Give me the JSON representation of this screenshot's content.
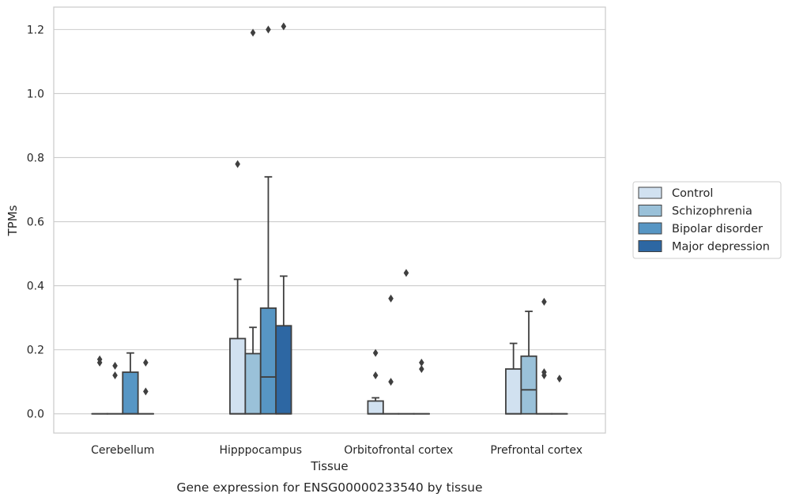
{
  "chart_data": {
    "type": "box",
    "xlabel": "Tissue",
    "ylabel": "TPMs",
    "caption": "Gene expression for ENSG00000233540 by tissue",
    "categories": [
      "Cerebellum",
      "Hipppocampus",
      "Orbitofrontal cortex",
      "Prefrontal cortex"
    ],
    "ylim": [
      -0.06,
      1.27
    ],
    "yticks": [
      0.0,
      0.2,
      0.4,
      0.6,
      0.8,
      1.0,
      1.2
    ],
    "ytick_labels": [
      "0.0",
      "0.2",
      "0.4",
      "0.6",
      "0.8",
      "1.0",
      "1.2"
    ],
    "grid": "horizontal",
    "legend_position": "right",
    "series": [
      {
        "name": "Control",
        "color": "#d1e1f0",
        "boxes": [
          {
            "category": "Cerebellum",
            "whisker_low": 0,
            "q1": 0,
            "median": 0,
            "q3": 0,
            "whisker_high": 0,
            "outliers": [
              0.17,
              0.16
            ]
          },
          {
            "category": "Hipppocampus",
            "whisker_low": 0,
            "q1": 0,
            "median": 0,
            "q3": 0.235,
            "whisker_high": 0.42,
            "outliers": [
              0.78
            ]
          },
          {
            "category": "Orbitofrontal cortex",
            "whisker_low": 0,
            "q1": 0,
            "median": 0,
            "q3": 0.04,
            "whisker_high": 0.05,
            "outliers": [
              0.19,
              0.12
            ]
          },
          {
            "category": "Prefrontal cortex",
            "whisker_low": 0,
            "q1": 0,
            "median": 0,
            "q3": 0.14,
            "whisker_high": 0.22,
            "outliers": []
          }
        ]
      },
      {
        "name": "Schizophrenia",
        "color": "#9ac1d9",
        "boxes": [
          {
            "category": "Cerebellum",
            "whisker_low": 0,
            "q1": 0,
            "median": 0,
            "q3": 0,
            "whisker_high": 0,
            "outliers": [
              0.15,
              0.12
            ]
          },
          {
            "category": "Hipppocampus",
            "whisker_low": 0,
            "q1": 0,
            "median": 0,
            "q3": 0.188,
            "whisker_high": 0.27,
            "outliers": [
              1.19
            ]
          },
          {
            "category": "Orbitofrontal cortex",
            "whisker_low": 0,
            "q1": 0,
            "median": 0,
            "q3": 0,
            "whisker_high": 0,
            "outliers": [
              0.36,
              0.1
            ]
          },
          {
            "category": "Prefrontal cortex",
            "whisker_low": 0,
            "q1": 0,
            "median": 0.075,
            "q3": 0.18,
            "whisker_high": 0.32,
            "outliers": []
          }
        ]
      },
      {
        "name": "Bipolar disorder",
        "color": "#5796c4",
        "boxes": [
          {
            "category": "Cerebellum",
            "whisker_low": 0,
            "q1": 0,
            "median": 0,
            "q3": 0.13,
            "whisker_high": 0.19,
            "outliers": []
          },
          {
            "category": "Hipppocampus",
            "whisker_low": 0,
            "q1": 0,
            "median": 0.115,
            "q3": 0.33,
            "whisker_high": 0.74,
            "outliers": [
              1.2
            ]
          },
          {
            "category": "Orbitofrontal cortex",
            "whisker_low": 0,
            "q1": 0,
            "median": 0,
            "q3": 0,
            "whisker_high": 0,
            "outliers": [
              0.44
            ]
          },
          {
            "category": "Prefrontal cortex",
            "whisker_low": 0,
            "q1": 0,
            "median": 0,
            "q3": 0,
            "whisker_high": 0,
            "outliers": [
              0.35,
              0.13,
              0.12
            ]
          }
        ]
      },
      {
        "name": "Major depression",
        "color": "#2d67a3",
        "boxes": [
          {
            "category": "Cerebellum",
            "whisker_low": 0,
            "q1": 0,
            "median": 0,
            "q3": 0,
            "whisker_high": 0,
            "outliers": [
              0.16,
              0.07
            ]
          },
          {
            "category": "Hipppocampus",
            "whisker_low": 0,
            "q1": 0,
            "median": 0,
            "q3": 0.275,
            "whisker_high": 0.43,
            "outliers": [
              1.21
            ]
          },
          {
            "category": "Orbitofrontal cortex",
            "whisker_low": 0,
            "q1": 0,
            "median": 0,
            "q3": 0,
            "whisker_high": 0,
            "outliers": [
              0.16,
              0.14
            ]
          },
          {
            "category": "Prefrontal cortex",
            "whisker_low": 0,
            "q1": 0,
            "median": 0,
            "q3": 0,
            "whisker_high": 0,
            "outliers": [
              0.11
            ]
          }
        ]
      }
    ]
  }
}
